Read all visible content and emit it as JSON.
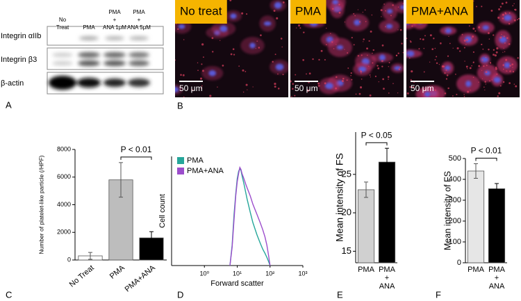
{
  "panel_labels": [
    "A",
    "B",
    "C",
    "D",
    "E",
    "F"
  ],
  "blot": {
    "lanes": [
      [
        "No",
        "Treat"
      ],
      [
        "PMA"
      ],
      [
        "PMA",
        "+",
        "ANA 1μM"
      ],
      [
        "PMA",
        "+",
        "ANA 5μM"
      ]
    ],
    "rows": [
      "Integrin αIIb",
      "Integrin β3",
      "β-actin"
    ]
  },
  "micrographs": [
    {
      "label": "No treat",
      "scale": "50 μm"
    },
    {
      "label": "PMA",
      "scale": "50 μm"
    },
    {
      "label": "PMA+ANA",
      "scale": "50 μm"
    }
  ],
  "chart_data": [
    {
      "type": "bar",
      "ylabel": "Number of platelet-like particle (/HPF)",
      "categories": [
        "No Treat",
        "PMA",
        "PMA+ANA"
      ],
      "values": [
        300,
        5800,
        1600
      ],
      "errors": [
        250,
        1250,
        450
      ],
      "colors": [
        "#ffffff",
        "#bdbdbd",
        "#000000"
      ],
      "ylim": [
        0,
        8000
      ],
      "yticks": [
        0,
        2000,
        4000,
        6000,
        8000
      ],
      "annotation": "P < 0.01"
    },
    {
      "type": "line",
      "ylabel": "Cell count",
      "xlabel": "Forward scatter",
      "log_x": true,
      "xlim": [
        0.1,
        1000
      ],
      "ylim": [
        0,
        100
      ],
      "xticks": [
        {
          "value": 1,
          "label": "10⁰"
        },
        {
          "value": 10,
          "label": "10¹"
        },
        {
          "value": 100,
          "label": "10²"
        },
        {
          "value": 1000,
          "label": "10³"
        }
      ],
      "x": [
        6,
        7,
        8,
        9,
        10,
        11,
        12,
        13,
        14,
        16,
        18,
        20,
        25,
        30,
        40,
        50,
        60,
        70,
        80,
        90,
        100
      ],
      "series": [
        {
          "name": "PMA",
          "color": "#26a69a",
          "values": [
            0,
            20,
            50,
            70,
            85,
            92,
            95,
            93,
            88,
            80,
            72,
            65,
            52,
            42,
            30,
            22,
            16,
            12,
            8,
            4,
            0
          ]
        },
        {
          "name": "PMA+ANA",
          "color": "#9c4dcc",
          "values": [
            0,
            18,
            45,
            68,
            82,
            90,
            96,
            94,
            90,
            85,
            80,
            76,
            68,
            60,
            50,
            42,
            35,
            28,
            20,
            10,
            0
          ]
        }
      ]
    },
    {
      "type": "bar",
      "ylabel": "Mean intensity of FS",
      "categories": [
        [
          "PMA"
        ],
        [
          "PMA",
          "+",
          "ANA"
        ]
      ],
      "values": [
        23,
        26.6
      ],
      "errors": [
        1,
        1.8
      ],
      "colors": [
        "#d0d0d0",
        "#000000"
      ],
      "ylim": [
        13.5,
        30.5
      ],
      "yticks": [
        15,
        20,
        25
      ],
      "annotation": "P < 0.05"
    },
    {
      "type": "bar",
      "ylabel": "Mean intensity of FS",
      "categories": [
        [
          "PMA"
        ],
        [
          "PMA",
          "+",
          "ANA"
        ]
      ],
      "values": [
        440,
        355
      ],
      "errors": [
        35,
        25
      ],
      "colors": [
        "#e6e6e6",
        "#000000"
      ],
      "ylim": [
        0,
        500
      ],
      "yticks": [
        0,
        100,
        200,
        300,
        400,
        500
      ],
      "annotation": "P < 0.01"
    }
  ]
}
